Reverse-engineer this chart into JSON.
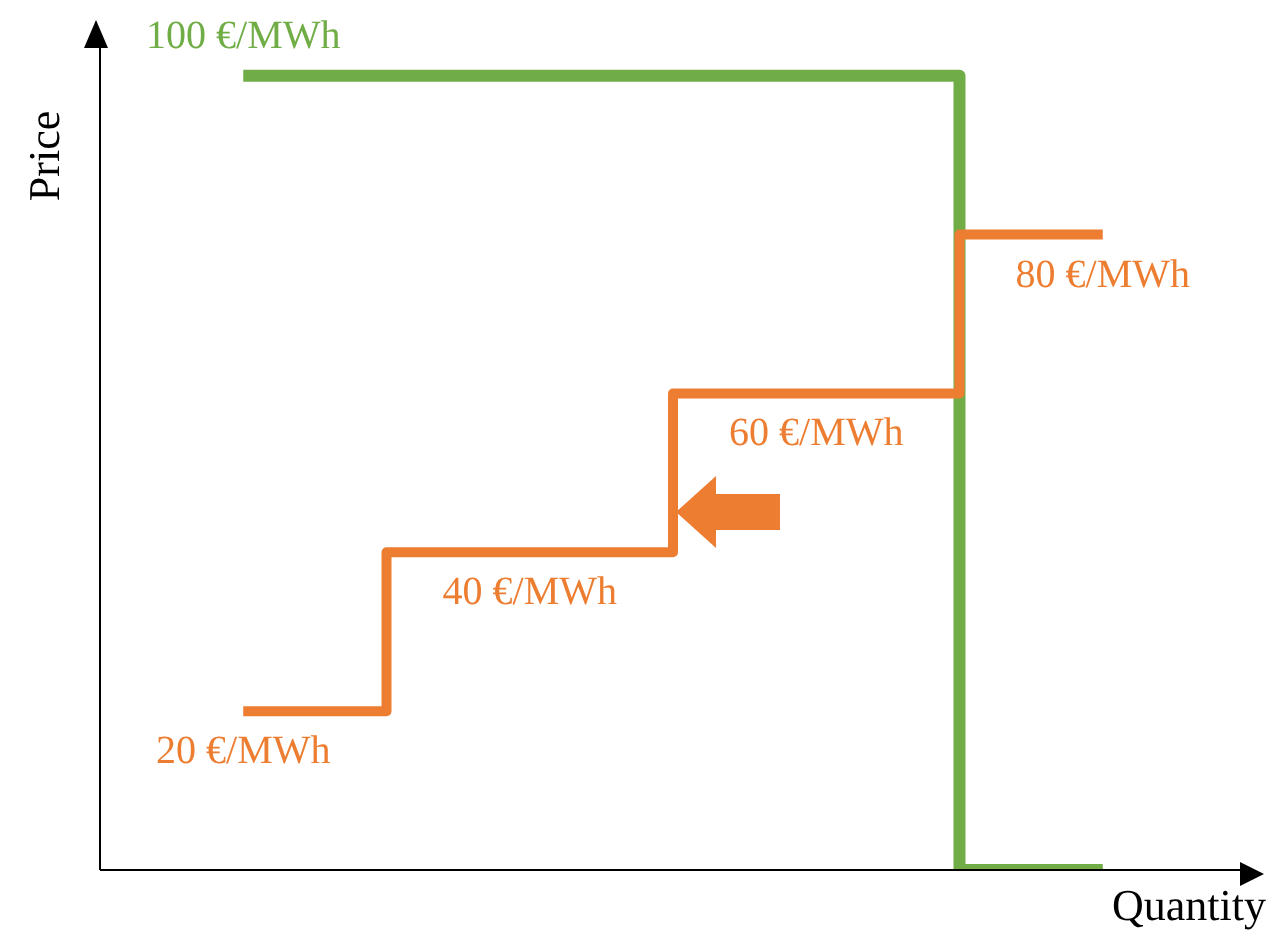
{
  "chart_data": {
    "type": "step",
    "xlabel": "Quantity",
    "ylabel": "Price",
    "categories": [
      null,
      null,
      null,
      null
    ],
    "series": [
      {
        "color": "#70ad47",
        "values": [
          100,
          100,
          100,
          0
        ],
        "value_labels": [
          "100 €/MWh",
          null,
          null,
          null
        ]
      },
      {
        "color": "#ed7d31",
        "values": [
          20,
          40,
          60,
          80
        ],
        "value_labels": [
          "20 €/MWh",
          "40 €/MWh",
          "60 €/MWh",
          "80 €/MWh"
        ]
      }
    ],
    "grid": false,
    "legend": false,
    "tick_labels": false
  }
}
